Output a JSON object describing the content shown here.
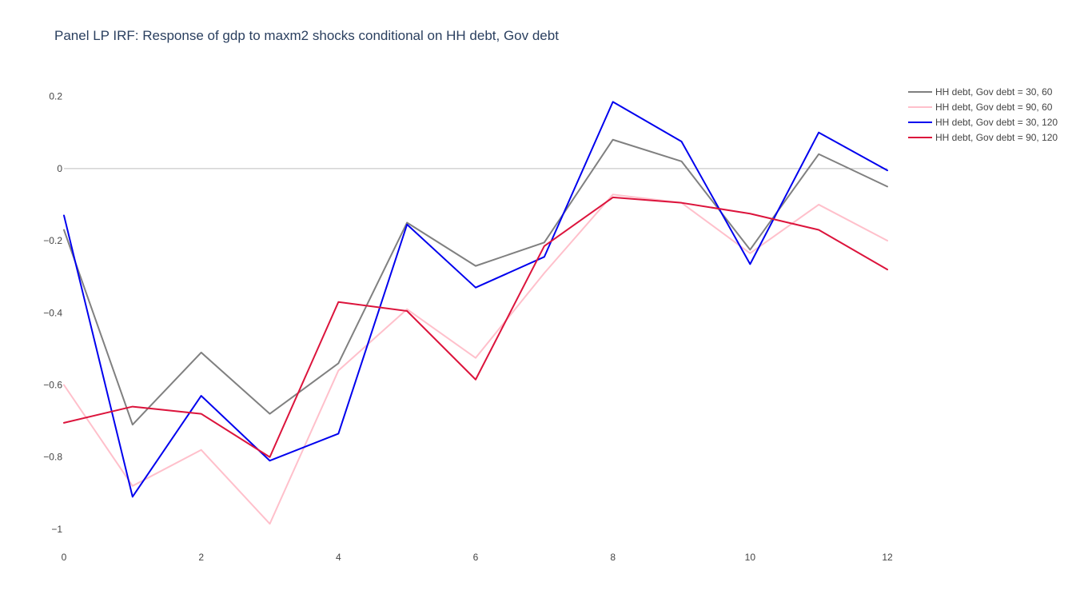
{
  "chart_data": {
    "type": "line",
    "title": "Panel LP IRF: Response of gdp to maxm2 shocks conditional on HH debt, Gov debt",
    "xlabel": "",
    "ylabel": "",
    "x": [
      0,
      1,
      2,
      3,
      4,
      5,
      6,
      7,
      8,
      9,
      10,
      11,
      12
    ],
    "xlim": [
      0,
      12
    ],
    "ylim": [
      -1.04,
      0.29
    ],
    "x_ticks": [
      0,
      2,
      4,
      6,
      8,
      10,
      12
    ],
    "x_tick_labels": [
      "0",
      "2",
      "4",
      "6",
      "8",
      "10",
      "12"
    ],
    "y_ticks": [
      0.2,
      0,
      -0.2,
      -0.4,
      -0.6,
      -0.8,
      -1
    ],
    "y_tick_labels": [
      "0.2",
      "0",
      "−0.2",
      "−0.4",
      "−0.6",
      "−0.8",
      "−1"
    ],
    "grid": false,
    "zero_line": true,
    "legend_position": "top-right",
    "series": [
      {
        "name": "HH debt, Gov debt = 30, 60",
        "color": "#808080",
        "values": [
          -0.17,
          -0.71,
          -0.51,
          -0.68,
          -0.54,
          -0.15,
          -0.27,
          -0.205,
          0.08,
          0.02,
          -0.225,
          0.04,
          -0.05
        ]
      },
      {
        "name": "HH debt, Gov debt = 90, 60",
        "color": "#ffc0cb",
        "values": [
          -0.6,
          -0.88,
          -0.78,
          -0.985,
          -0.56,
          -0.39,
          -0.525,
          -0.29,
          -0.072,
          -0.095,
          -0.235,
          -0.1,
          -0.2
        ]
      },
      {
        "name": "HH debt, Gov debt = 30, 120",
        "color": "#0000ee",
        "values": [
          -0.13,
          -0.91,
          -0.63,
          -0.81,
          -0.735,
          -0.155,
          -0.33,
          -0.245,
          0.185,
          0.075,
          -0.265,
          0.1,
          -0.005
        ]
      },
      {
        "name": "HH debt, Gov debt = 90, 120",
        "color": "#dc143c",
        "values": [
          -0.705,
          -0.66,
          -0.68,
          -0.8,
          -0.37,
          -0.395,
          -0.585,
          -0.215,
          -0.08,
          -0.095,
          -0.125,
          -0.17,
          -0.28
        ]
      }
    ]
  }
}
